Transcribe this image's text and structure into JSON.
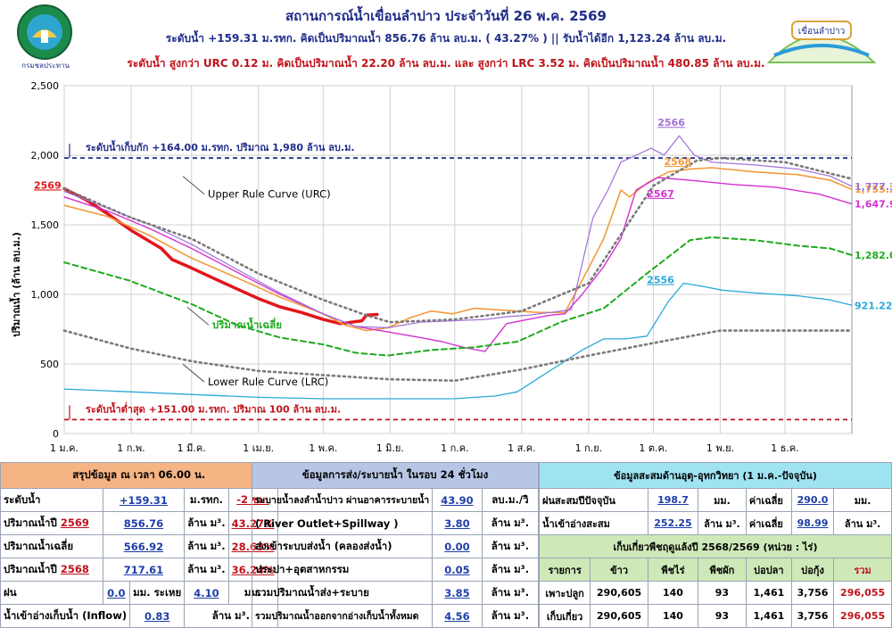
{
  "header": {
    "title": "สถานการณ์น้ำเขื่อนลำปาว ประจำวันที่ 26 พ.ค. 2569",
    "line2": "ระดับน้ำ +159.31 ม.รทก. คิดเป็นปริมาณน้ำ 856.76 ล้าน ลบ.ม. ( 43.27% ) || รับน้ำได้อีก 1,123.24 ล้าน ลบ.ม.",
    "line3": "ระดับน้ำ สูงกว่า URC 0.12 ม. คิดเป็นปริมาณน้ำ 22.20 ล้าน ลบ.ม. และ สูงกว่า LRC 3.52 ม. คิดเป็นปริมาณน้ำ 480.85 ล้าน ลบ.ม.",
    "logo_left_text": "กรมชลประทาน",
    "logo_right_text": "เขื่อนลำปาว"
  },
  "chart_data": {
    "type": "line",
    "ylabel": "ปริมาณน้ำ (ล้าน ลบ.ม.)",
    "ylim": [
      0,
      2500
    ],
    "yticks": [
      0,
      500,
      1000,
      1500,
      2000,
      2500
    ],
    "ytick_labels": [
      "0",
      "500",
      "1,000",
      "1,500",
      "2,000",
      "2,500"
    ],
    "x_labels": [
      "1 ม.ค.",
      "1 ก.พ.",
      "1 มี.ค.",
      "1 เม.ย.",
      "1 พ.ค.",
      "1 มิ.ย.",
      "1 ก.ค.",
      "1 ส.ค.",
      "1 ก.ย.",
      "1 ต.ค.",
      "1 พ.ย.",
      "1 ธ.ค."
    ],
    "x_days": [
      0,
      31,
      59,
      90,
      120,
      151,
      181,
      212,
      243,
      273,
      304,
      334
    ],
    "x_max": 365,
    "reference_lines": [
      {
        "label": "ระดับน้ำเก็บกัก +164.00 ม.รทก. ปริมาณ 1,980 ล้าน ลบ.ม.",
        "value": 1980,
        "color": "#1f2d8a"
      },
      {
        "label": "ระดับน้ำต่ำสุด +151.00 ม.รทก. ปริมาณ 100 ล้าน ลบ.ม.",
        "value": 100,
        "color": "#c0121b"
      }
    ],
    "annotations": [
      {
        "text": "Upper Rule Curve (URC)",
        "day": 55,
        "value": 1695
      },
      {
        "text": "ปริมาณน้ำเฉลี่ย",
        "day": 57,
        "value": 755
      },
      {
        "text": "Lower Rule Curve (LRC)",
        "day": 55,
        "value": 345
      }
    ],
    "series": [
      {
        "name": "2569",
        "color": "#e3151b",
        "width": 3.5,
        "dash": "",
        "label_day": -8,
        "label_value": 1760,
        "points": [
          [
            0,
            1760
          ],
          [
            10,
            1680
          ],
          [
            20,
            1580
          ],
          [
            31,
            1460
          ],
          [
            45,
            1330
          ],
          [
            50,
            1250
          ],
          [
            59,
            1190
          ],
          [
            70,
            1110
          ],
          [
            80,
            1040
          ],
          [
            90,
            970
          ],
          [
            100,
            910
          ],
          [
            110,
            870
          ],
          [
            120,
            820
          ],
          [
            128,
            790
          ],
          [
            133,
            800
          ],
          [
            138,
            810
          ],
          [
            140,
            850
          ],
          [
            145,
            856
          ]
        ]
      },
      {
        "name": "2568",
        "color": "#f39b3b",
        "width": 1.6,
        "dash": "",
        "label_day": 278,
        "label_value": 1930,
        "end_label": "1,755.20",
        "points": [
          [
            0,
            1640
          ],
          [
            20,
            1560
          ],
          [
            40,
            1420
          ],
          [
            59,
            1260
          ],
          [
            80,
            1120
          ],
          [
            100,
            980
          ],
          [
            120,
            860
          ],
          [
            130,
            780
          ],
          [
            140,
            740
          ],
          [
            150,
            760
          ],
          [
            160,
            830
          ],
          [
            170,
            880
          ],
          [
            180,
            860
          ],
          [
            190,
            900
          ],
          [
            200,
            890
          ],
          [
            210,
            880
          ],
          [
            220,
            870
          ],
          [
            232,
            870
          ],
          [
            240,
            1100
          ],
          [
            250,
            1400
          ],
          [
            258,
            1750
          ],
          [
            262,
            1700
          ],
          [
            270,
            1800
          ],
          [
            280,
            1880
          ],
          [
            290,
            1900
          ],
          [
            300,
            1910
          ],
          [
            320,
            1880
          ],
          [
            340,
            1860
          ],
          [
            355,
            1820
          ],
          [
            365,
            1755
          ]
        ]
      },
      {
        "name": "2567",
        "color": "#d62fd0",
        "width": 1.4,
        "dash": "",
        "label_day": 270,
        "label_value": 1700,
        "end_label": "1,647.93",
        "points": [
          [
            0,
            1700
          ],
          [
            20,
            1600
          ],
          [
            40,
            1470
          ],
          [
            59,
            1330
          ],
          [
            80,
            1160
          ],
          [
            100,
            1000
          ],
          [
            120,
            860
          ],
          [
            135,
            770
          ],
          [
            150,
            730
          ],
          [
            165,
            690
          ],
          [
            175,
            660
          ],
          [
            185,
            620
          ],
          [
            195,
            590
          ],
          [
            205,
            790
          ],
          [
            215,
            820
          ],
          [
            225,
            850
          ],
          [
            232,
            860
          ],
          [
            240,
            1000
          ],
          [
            250,
            1200
          ],
          [
            258,
            1400
          ],
          [
            265,
            1750
          ],
          [
            275,
            1840
          ],
          [
            290,
            1820
          ],
          [
            310,
            1790
          ],
          [
            330,
            1770
          ],
          [
            350,
            1720
          ],
          [
            365,
            1650
          ]
        ]
      },
      {
        "name": "2566",
        "color": "#a070d8",
        "width": 1.2,
        "dash": "",
        "label_day": 275,
        "label_value": 2210,
        "end_label": "1,777.39",
        "points": [
          [
            0,
            1740
          ],
          [
            20,
            1620
          ],
          [
            40,
            1500
          ],
          [
            59,
            1360
          ],
          [
            80,
            1180
          ],
          [
            100,
            1010
          ],
          [
            120,
            860
          ],
          [
            135,
            770
          ],
          [
            150,
            760
          ],
          [
            165,
            800
          ],
          [
            180,
            810
          ],
          [
            195,
            820
          ],
          [
            205,
            840
          ],
          [
            215,
            850
          ],
          [
            225,
            870
          ],
          [
            235,
            890
          ],
          [
            245,
            1550
          ],
          [
            252,
            1750
          ],
          [
            258,
            1950
          ],
          [
            265,
            2000
          ],
          [
            272,
            2050
          ],
          [
            278,
            2000
          ],
          [
            285,
            2140
          ],
          [
            292,
            2000
          ],
          [
            300,
            1950
          ],
          [
            320,
            1930
          ],
          [
            340,
            1900
          ],
          [
            355,
            1850
          ],
          [
            365,
            1777
          ]
        ]
      },
      {
        "name": "2556",
        "color": "#2aa8d8",
        "width": 1.3,
        "dash": "",
        "label_day": 270,
        "label_value": 1080,
        "end_label": "921.22",
        "points": [
          [
            0,
            320
          ],
          [
            30,
            300
          ],
          [
            60,
            280
          ],
          [
            90,
            260
          ],
          [
            120,
            250
          ],
          [
            150,
            250
          ],
          [
            180,
            250
          ],
          [
            200,
            270
          ],
          [
            210,
            300
          ],
          [
            220,
            400
          ],
          [
            230,
            500
          ],
          [
            240,
            600
          ],
          [
            250,
            680
          ],
          [
            260,
            680
          ],
          [
            270,
            700
          ],
          [
            280,
            950
          ],
          [
            287,
            1080
          ],
          [
            295,
            1060
          ],
          [
            305,
            1030
          ],
          [
            320,
            1010
          ],
          [
            340,
            990
          ],
          [
            355,
            960
          ],
          [
            365,
            921
          ]
        ]
      },
      {
        "name": "ปริมาณน้ำเฉลี่ย",
        "color": "#1faa1f",
        "width": 2.0,
        "dash": "6,4",
        "end_label": "1,282.06",
        "points": [
          [
            0,
            1230
          ],
          [
            30,
            1100
          ],
          [
            59,
            930
          ],
          [
            80,
            780
          ],
          [
            100,
            690
          ],
          [
            120,
            640
          ],
          [
            135,
            580
          ],
          [
            150,
            560
          ],
          [
            170,
            600
          ],
          [
            190,
            620
          ],
          [
            210,
            660
          ],
          [
            230,
            800
          ],
          [
            250,
            900
          ],
          [
            270,
            1150
          ],
          [
            290,
            1390
          ],
          [
            300,
            1410
          ],
          [
            320,
            1390
          ],
          [
            340,
            1350
          ],
          [
            355,
            1330
          ],
          [
            365,
            1282
          ]
        ]
      },
      {
        "name": "URC",
        "color": "#7a7a7a",
        "width": 2.6,
        "dash": "2,4",
        "points": [
          [
            0,
            1760
          ],
          [
            31,
            1550
          ],
          [
            59,
            1400
          ],
          [
            90,
            1150
          ],
          [
            120,
            960
          ],
          [
            140,
            850
          ],
          [
            151,
            800
          ],
          [
            181,
            820
          ],
          [
            212,
            880
          ],
          [
            243,
            1080
          ],
          [
            273,
            1780
          ],
          [
            293,
            1960
          ],
          [
            304,
            1980
          ],
          [
            334,
            1950
          ],
          [
            365,
            1830
          ]
        ]
      },
      {
        "name": "LRC",
        "color": "#7a7a7a",
        "width": 2.6,
        "dash": "2,4",
        "points": [
          [
            0,
            740
          ],
          [
            31,
            610
          ],
          [
            59,
            520
          ],
          [
            90,
            450
          ],
          [
            120,
            420
          ],
          [
            151,
            390
          ],
          [
            181,
            380
          ],
          [
            212,
            460
          ],
          [
            243,
            560
          ],
          [
            273,
            650
          ],
          [
            304,
            740
          ],
          [
            334,
            740
          ],
          [
            365,
            740
          ]
        ]
      }
    ]
  },
  "summary": {
    "header": "สรุปข้อมูล ณ เวลา 06.00 น.",
    "rows": [
      {
        "label": "ระดับน้ำ",
        "value": "+159.31",
        "unit": "ม.รทก.",
        "extra": "-2 ซม."
      },
      {
        "label": "ปริมาณน้ำปี",
        "year": "2569",
        "value": "856.76",
        "unit": "ล้าน ม³.",
        "extra": "43.27%"
      },
      {
        "label": "ปริมาณน้ำเฉลี่ย",
        "value": "566.92",
        "unit": "ล้าน ม³.",
        "extra": "28.63%"
      },
      {
        "label": "ปริมาณน้ำปี",
        "year": "2568",
        "value": "717.61",
        "unit": "ล้าน ม³.",
        "extra": "36.24%"
      },
      {
        "label": "ฝน",
        "value": "0.0",
        "unit": "มม. ระเหย",
        "extra": "4.10",
        "extra_unit": "มม."
      },
      {
        "label": "น้ำเข้าอ่างเก็บน้ำ (Inflow)",
        "value": "0.83",
        "unit": "ล้าน ม³."
      }
    ]
  },
  "release": {
    "header": "ข้อมูลการส่ง/ระบายน้ำ ในรอบ 24 ชั่วโมง",
    "rows": [
      {
        "label": "ระบายน้ำลงลำน้ำปาว ผ่านอาคารระบายน้ำ",
        "value": "43.90",
        "unit": "ลบ.ม./วิ"
      },
      {
        "label": "( River Outlet+Spillway )",
        "value": "3.80",
        "unit": "ล้าน ม³."
      },
      {
        "label": "ส่งเข้าระบบส่งน้ำ (คลองส่งน้ำ)",
        "value": "0.00",
        "unit": "ล้าน ม³."
      },
      {
        "label": "ประปา+อุตสาหกรรม",
        "value": "0.05",
        "unit": "ล้าน ม³."
      },
      {
        "label": "รวมปริมาณน้ำส่ง+ระบาย",
        "value": "3.85",
        "unit": "ล้าน ม³."
      },
      {
        "label": "รวมปริมาณน้ำออกจากอ่างเก็บน้ำทั้งหมด",
        "value": "4.56",
        "unit": "ล้าน ม³."
      }
    ]
  },
  "accum": {
    "header": "ข้อมูลสะสมด้านอุตุ-อุทกวิทยา (1 ม.ค.-ปัจจุบัน)",
    "rows": [
      {
        "label": "ฝนสะสมปีปัจจุบัน",
        "value": "198.7",
        "unit": "มม.",
        "avg_label": "ค่าเฉลี่ย",
        "avg": "290.0",
        "avg_unit": "มม."
      },
      {
        "label": "น้ำเข้าอ่างสะสม",
        "value": "252.25",
        "unit": "ล้าน ม³.",
        "avg_label": "ค่าเฉลี่ย",
        "avg": "98.99",
        "avg_unit": "ล้าน ม³."
      }
    ]
  },
  "harvest": {
    "header": "เก็บเกี่ยวพืชฤดูแล้งปี 2568/2569 (หน่วย : ไร่)",
    "columns": [
      "รายการ",
      "ข้าว",
      "พืชไร่",
      "พืชผัก",
      "บ่อปลา",
      "บ่อกุ้ง",
      "รวม"
    ],
    "rows": [
      [
        "เพาะปลูก",
        "290,605",
        "140",
        "93",
        "1,461",
        "3,756",
        "296,055"
      ],
      [
        "เก็บเกี่ยว",
        "290,605",
        "140",
        "93",
        "1,461",
        "3,756",
        "296,055"
      ]
    ]
  }
}
